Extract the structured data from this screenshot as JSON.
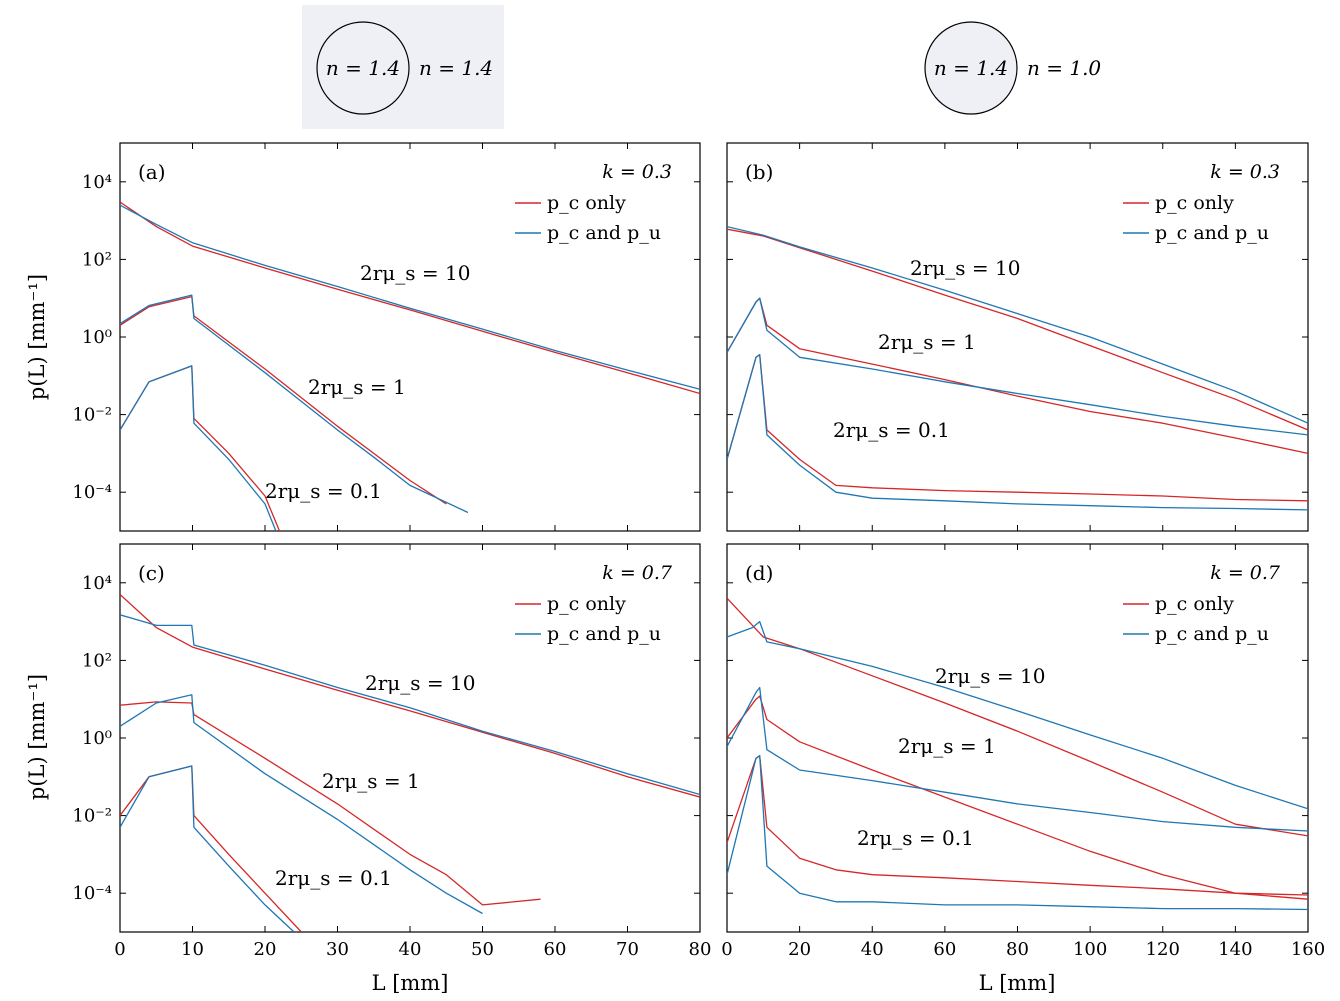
{
  "schematics": [
    {
      "inside": "n = 1.4",
      "outside": "n = 1.4",
      "highlighted": true
    },
    {
      "inside": "n = 1.4",
      "outside": "n = 1.0",
      "highlighted": false
    }
  ],
  "axes": {
    "xlabel": "L [mm]",
    "ylabel": "p(L) [mm⁻¹]",
    "y_scale": "log",
    "ytick_labels": [
      "10⁴",
      "10²",
      "10⁰",
      "10⁻²",
      "10⁻⁴"
    ],
    "ytick_values": [
      10000,
      100,
      1,
      0.01,
      0.0001
    ],
    "ylim": [
      1e-05,
      100000
    ],
    "left_xlim": [
      0,
      80
    ],
    "right_xlim": [
      0,
      160
    ],
    "left_xticks": [
      "0",
      "10",
      "20",
      "30",
      "40",
      "50",
      "60",
      "70",
      "80"
    ],
    "right_xticks": [
      "0",
      "20",
      "40",
      "60",
      "80",
      "100",
      "120",
      "140",
      "160"
    ]
  },
  "legend": {
    "red_label": "p_c only",
    "blue_label": "p_c and p_u",
    "red_color": "#d62728",
    "blue_color": "#1f77b4"
  },
  "chart_data": [
    {
      "type": "line",
      "panel": "(a)",
      "k_label": "k = 0.3",
      "xlim": [
        0,
        80
      ],
      "y_scale": "log",
      "series": [
        {
          "name": "p_c only",
          "curve": "2rμ_s = 10",
          "x": [
            0,
            5,
            10,
            20,
            30,
            40,
            50,
            60,
            70,
            80
          ],
          "y": [
            3000,
            700,
            220,
            60,
            17,
            5,
            1.4,
            0.4,
            0.12,
            0.035
          ]
        },
        {
          "name": "p_c and p_u",
          "curve": "2rμ_s = 10",
          "x": [
            0,
            5,
            10,
            20,
            30,
            40,
            50,
            60,
            70,
            80
          ],
          "y": [
            2500,
            800,
            270,
            70,
            20,
            5.5,
            1.6,
            0.45,
            0.14,
            0.045
          ]
        },
        {
          "name": "p_c only",
          "curve": "2rμ_s = 1",
          "x": [
            0,
            4,
            9.9,
            10.2,
            20,
            30,
            35,
            40,
            45
          ],
          "y": [
            2,
            6,
            11,
            3.5,
            0.15,
            0.005,
            0.001,
            0.0002,
            5e-05
          ]
        },
        {
          "name": "p_c and p_u",
          "curve": "2rμ_s = 1",
          "x": [
            0,
            4,
            9.9,
            10.2,
            20,
            30,
            35,
            40,
            48
          ],
          "y": [
            2.2,
            6.5,
            12,
            3,
            0.12,
            0.004,
            0.0008,
            0.00015,
            3e-05
          ]
        },
        {
          "name": "p_c only",
          "curve": "2rμ_s = 0.1",
          "x": [
            0,
            4,
            9.9,
            10.2,
            15,
            20,
            22
          ],
          "y": [
            0.004,
            0.07,
            0.18,
            0.008,
            0.001,
            8e-05,
            1e-05
          ]
        },
        {
          "name": "p_c and p_u",
          "curve": "2rμ_s = 0.1",
          "x": [
            0,
            4,
            9.9,
            10.2,
            15,
            20,
            21.5
          ],
          "y": [
            0.004,
            0.07,
            0.18,
            0.006,
            0.0007,
            5e-05,
            1e-05
          ]
        }
      ],
      "annotations": [
        "2rμ_s = 10",
        "2rμ_s = 1",
        "2rμ_s = 0.1"
      ]
    },
    {
      "type": "line",
      "panel": "(b)",
      "k_label": "k = 0.3",
      "xlim": [
        0,
        160
      ],
      "y_scale": "log",
      "series": [
        {
          "name": "p_c only",
          "curve": "2rμ_s = 10",
          "x": [
            0,
            10,
            20,
            40,
            60,
            80,
            100,
            120,
            140,
            160
          ],
          "y": [
            600,
            400,
            200,
            50,
            12,
            3,
            0.6,
            0.12,
            0.025,
            0.004
          ]
        },
        {
          "name": "p_c and p_u",
          "curve": "2rμ_s = 10",
          "x": [
            0,
            10,
            20,
            40,
            60,
            80,
            100,
            120,
            140,
            160
          ],
          "y": [
            700,
            420,
            210,
            60,
            16,
            4,
            1,
            0.2,
            0.04,
            0.006
          ]
        },
        {
          "name": "p_c only",
          "curve": "2rμ_s = 1",
          "x": [
            0,
            8,
            9,
            11,
            20,
            40,
            60,
            80,
            100,
            120,
            140,
            160
          ],
          "y": [
            0.4,
            8,
            10,
            2,
            0.5,
            0.2,
            0.08,
            0.03,
            0.012,
            0.006,
            0.0025,
            0.001
          ]
        },
        {
          "name": "p_c and p_u",
          "curve": "2rμ_s = 1",
          "x": [
            0,
            8,
            9,
            11,
            20,
            40,
            60,
            80,
            100,
            120,
            140,
            160
          ],
          "y": [
            0.4,
            8,
            10,
            1.5,
            0.3,
            0.15,
            0.07,
            0.035,
            0.018,
            0.009,
            0.005,
            0.003
          ]
        },
        {
          "name": "p_c only",
          "curve": "2rμ_s = 0.1",
          "x": [
            0,
            8,
            9,
            11,
            20,
            30,
            40,
            60,
            80,
            100,
            120,
            140,
            160
          ],
          "y": [
            0.0007,
            0.3,
            0.35,
            0.004,
            0.0007,
            0.00015,
            0.00013,
            0.00011,
            0.0001,
            9e-05,
            8e-05,
            6.5e-05,
            6e-05
          ]
        },
        {
          "name": "p_c and p_u",
          "curve": "2rμ_s = 0.1",
          "x": [
            0,
            8,
            9,
            11,
            20,
            30,
            40,
            60,
            80,
            100,
            120,
            140,
            160
          ],
          "y": [
            0.0007,
            0.3,
            0.35,
            0.003,
            0.0005,
            0.0001,
            7e-05,
            6e-05,
            5e-05,
            4.5e-05,
            4e-05,
            3.8e-05,
            3.5e-05
          ]
        }
      ],
      "annotations": [
        "2rμ_s = 10",
        "2rμ_s = 1",
        "2rμ_s = 0.1"
      ]
    },
    {
      "type": "line",
      "panel": "(c)",
      "k_label": "k = 0.7",
      "xlim": [
        0,
        80
      ],
      "y_scale": "log",
      "series": [
        {
          "name": "p_c only",
          "curve": "2rμ_s = 10",
          "x": [
            0,
            5,
            10,
            20,
            30,
            40,
            50,
            60,
            70,
            80
          ],
          "y": [
            5000,
            700,
            220,
            60,
            17,
            5,
            1.4,
            0.4,
            0.1,
            0.03
          ]
        },
        {
          "name": "p_c and p_u",
          "curve": "2rμ_s = 10",
          "x": [
            0,
            5,
            9.9,
            10.2,
            20,
            30,
            40,
            50,
            60,
            70,
            80
          ],
          "y": [
            1500,
            800,
            800,
            250,
            75,
            20,
            6,
            1.5,
            0.45,
            0.12,
            0.035
          ]
        },
        {
          "name": "p_c only",
          "curve": "2rμ_s = 1",
          "x": [
            0,
            5,
            9.9,
            10.2,
            20,
            30,
            40,
            45,
            50,
            58
          ],
          "y": [
            7,
            8.5,
            8,
            4,
            0.3,
            0.02,
            0.001,
            0.0003,
            5e-05,
            7e-05
          ]
        },
        {
          "name": "p_c and p_u",
          "curve": "2rμ_s = 1",
          "x": [
            0,
            5,
            9.9,
            10.2,
            20,
            30,
            40,
            45,
            50
          ],
          "y": [
            2,
            8,
            13,
            2.5,
            0.12,
            0.008,
            0.0004,
            0.0001,
            3e-05
          ]
        },
        {
          "name": "p_c only",
          "curve": "2rμ_s = 0.1",
          "x": [
            0,
            4,
            9.9,
            10.2,
            15,
            20,
            25
          ],
          "y": [
            0.01,
            0.1,
            0.19,
            0.01,
            0.001,
            0.0001,
            1e-05
          ]
        },
        {
          "name": "p_c and p_u",
          "curve": "2rμ_s = 0.1",
          "x": [
            0,
            4,
            9.9,
            10.2,
            15,
            20,
            24
          ],
          "y": [
            0.005,
            0.1,
            0.19,
            0.005,
            0.0005,
            5e-05,
            1e-05
          ]
        }
      ],
      "annotations": [
        "2rμ_s = 10",
        "2rμ_s = 1",
        "2rμ_s = 0.1"
      ]
    },
    {
      "type": "line",
      "panel": "(d)",
      "k_label": "k = 0.7",
      "xlim": [
        0,
        160
      ],
      "y_scale": "log",
      "series": [
        {
          "name": "p_c only",
          "curve": "2rμ_s = 10",
          "x": [
            0,
            10,
            20,
            40,
            60,
            80,
            100,
            120,
            140,
            160
          ],
          "y": [
            4000,
            400,
            200,
            40,
            8,
            1.5,
            0.25,
            0.04,
            0.006,
            0.003
          ]
        },
        {
          "name": "p_c and p_u",
          "curve": "2rμ_s = 10",
          "x": [
            0,
            7,
            9,
            11,
            20,
            40,
            60,
            80,
            100,
            120,
            140,
            160
          ],
          "y": [
            400,
            700,
            1000,
            300,
            200,
            70,
            20,
            5,
            1.2,
            0.3,
            0.06,
            0.015
          ]
        },
        {
          "name": "p_c only",
          "curve": "2rμ_s = 1",
          "x": [
            0,
            8,
            9,
            11,
            20,
            40,
            60,
            80,
            100,
            120,
            140,
            160
          ],
          "y": [
            1,
            10,
            12,
            3,
            0.8,
            0.15,
            0.03,
            0.006,
            0.0012,
            0.0003,
            0.0001,
            7e-05
          ]
        },
        {
          "name": "p_c and p_u",
          "curve": "2rμ_s = 1",
          "x": [
            0,
            8,
            9,
            11,
            20,
            40,
            60,
            80,
            100,
            120,
            140,
            160
          ],
          "y": [
            0.6,
            15,
            20,
            0.5,
            0.15,
            0.08,
            0.04,
            0.02,
            0.012,
            0.007,
            0.005,
            0.004
          ]
        },
        {
          "name": "p_c only",
          "curve": "2rμ_s = 0.1",
          "x": [
            0,
            8,
            9,
            11,
            20,
            30,
            40,
            60,
            80,
            100,
            120,
            140,
            160
          ],
          "y": [
            0.002,
            0.3,
            0.35,
            0.005,
            0.0008,
            0.0004,
            0.0003,
            0.00025,
            0.0002,
            0.00016,
            0.00013,
            0.0001,
            9e-05
          ]
        },
        {
          "name": "p_c and p_u",
          "curve": "2rμ_s = 0.1",
          "x": [
            0,
            8,
            9,
            11,
            20,
            30,
            40,
            60,
            80,
            100,
            120,
            140,
            160
          ],
          "y": [
            0.0003,
            0.3,
            0.35,
            0.0005,
            0.0001,
            6e-05,
            6e-05,
            5e-05,
            5e-05,
            4.5e-05,
            4e-05,
            4e-05,
            3.8e-05
          ]
        }
      ],
      "annotations": [
        "2rμ_s = 10",
        "2rμ_s = 1",
        "2rμ_s = 0.1"
      ]
    }
  ]
}
